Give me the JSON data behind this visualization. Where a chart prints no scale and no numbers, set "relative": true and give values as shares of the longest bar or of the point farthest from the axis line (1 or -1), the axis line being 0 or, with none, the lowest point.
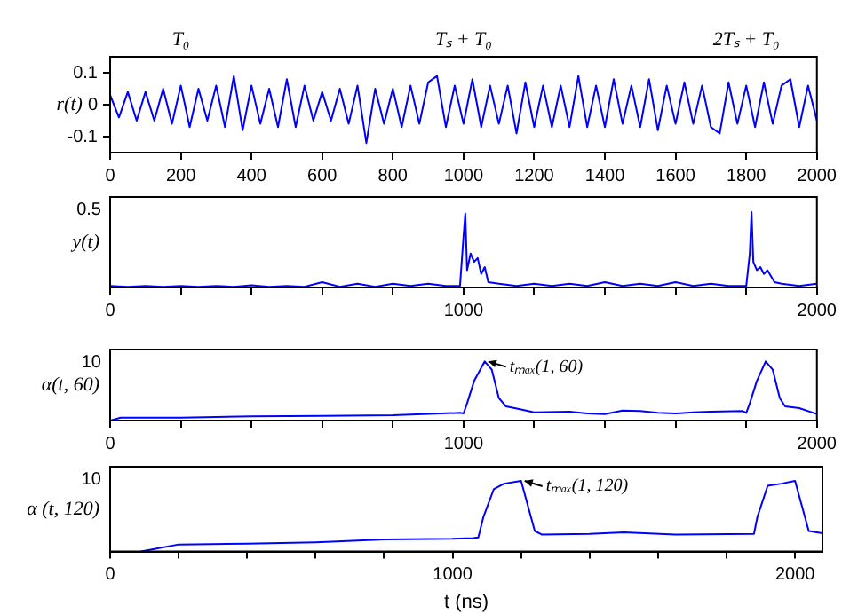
{
  "chart_data": [
    {
      "type": "line",
      "ylabel": "r(t)",
      "x": [
        0,
        25,
        50,
        75,
        100,
        125,
        150,
        175,
        200,
        225,
        250,
        275,
        300,
        325,
        350,
        375,
        400,
        425,
        450,
        475,
        500,
        525,
        550,
        575,
        600,
        625,
        650,
        675,
        700,
        725,
        750,
        775,
        800,
        825,
        850,
        875,
        900,
        925,
        950,
        975,
        1000,
        1025,
        1050,
        1075,
        1100,
        1125,
        1150,
        1175,
        1200,
        1225,
        1250,
        1275,
        1300,
        1325,
        1350,
        1375,
        1400,
        1425,
        1450,
        1475,
        1500,
        1525,
        1550,
        1575,
        1600,
        1625,
        1650,
        1675,
        1700,
        1725,
        1750,
        1775,
        1800,
        1825,
        1850,
        1875,
        1900,
        1925,
        1950,
        1975,
        2000
      ],
      "series": [
        {
          "color": "#0000ff",
          "values": [
            0.03,
            -0.04,
            0.04,
            -0.05,
            0.04,
            -0.05,
            0.05,
            -0.06,
            0.06,
            -0.07,
            0.05,
            -0.05,
            0.06,
            -0.07,
            0.09,
            -0.08,
            0.06,
            -0.06,
            0.05,
            -0.07,
            0.08,
            -0.07,
            0.06,
            -0.05,
            0.04,
            -0.05,
            0.05,
            -0.06,
            0.06,
            -0.12,
            0.05,
            -0.06,
            0.05,
            -0.07,
            0.06,
            -0.06,
            0.07,
            0.09,
            -0.07,
            0.06,
            -0.06,
            0.08,
            -0.07,
            0.06,
            -0.06,
            0.06,
            -0.09,
            0.07,
            -0.07,
            0.06,
            -0.07,
            0.06,
            -0.07,
            0.09,
            -0.07,
            0.06,
            -0.07,
            0.08,
            -0.06,
            0.06,
            -0.07,
            0.08,
            -0.08,
            0.06,
            -0.06,
            0.07,
            -0.06,
            0.06,
            -0.07,
            -0.09,
            0.07,
            -0.06,
            0.06,
            -0.07,
            0.07,
            -0.06,
            0.06,
            0.08,
            -0.07,
            0.06,
            -0.05
          ]
        }
      ],
      "xlim": [
        0,
        2000
      ],
      "xticks": [
        0,
        200,
        400,
        600,
        800,
        1000,
        1200,
        1400,
        1600,
        1800,
        2000
      ],
      "ylim": [
        -0.15,
        0.15
      ],
      "yticks": [
        -0.1,
        0,
        0.1
      ],
      "annotations": [
        "T₀",
        "Tₛ + T₀",
        "2Tₛ + T₀"
      ],
      "grid": false,
      "legend": false
    },
    {
      "type": "line",
      "ylabel": "y(t)",
      "relative": true,
      "x": [
        0,
        50,
        100,
        150,
        200,
        250,
        300,
        350,
        400,
        450,
        500,
        550,
        600,
        650,
        700,
        750,
        800,
        850,
        900,
        950,
        990,
        1000,
        1005,
        1010,
        1020,
        1030,
        1040,
        1050,
        1060,
        1070,
        1100,
        1150,
        1200,
        1250,
        1300,
        1350,
        1400,
        1450,
        1500,
        1550,
        1600,
        1650,
        1700,
        1750,
        1800,
        1810,
        1815,
        1820,
        1830,
        1840,
        1850,
        1860,
        1880,
        1900,
        1950,
        2000
      ],
      "series": [
        {
          "color": "#0000ff",
          "values": [
            0.02,
            0.01,
            0.02,
            0.01,
            0.02,
            0.01,
            0.02,
            0.01,
            0.03,
            0.01,
            0.02,
            0.01,
            0.07,
            0.01,
            0.05,
            0.01,
            0.05,
            0.02,
            0.05,
            0.02,
            0.02,
            0.68,
            0.98,
            0.23,
            0.45,
            0.34,
            0.39,
            0.18,
            0.27,
            0.07,
            0.05,
            0.02,
            0.05,
            0.02,
            0.05,
            0.02,
            0.07,
            0.02,
            0.05,
            0.02,
            0.07,
            0.02,
            0.05,
            0.02,
            0.02,
            0.45,
            1,
            0.34,
            0.23,
            0.27,
            0.18,
            0.23,
            0.07,
            0.05,
            0.02,
            0.05
          ]
        }
      ],
      "xlim": [
        0,
        2000
      ],
      "xticks": [
        0,
        {
          "value": 200,
          "label": null
        },
        {
          "value": 400,
          "label": null
        },
        {
          "value": 600,
          "label": null
        },
        {
          "value": 800,
          "label": null
        },
        1000,
        {
          "value": 1200,
          "label": null
        },
        {
          "value": 1400,
          "label": null
        },
        {
          "value": 1600,
          "label": null
        },
        {
          "value": 1800,
          "label": null
        },
        2000
      ],
      "annotations": [
        "0.5"
      ],
      "grid": false,
      "legend": false
    },
    {
      "type": "line",
      "ylabel": "α(t, 60)",
      "relative": true,
      "x": [
        0,
        30,
        200,
        400,
        600,
        800,
        990,
        1000,
        1010,
        1030,
        1060,
        1080,
        1100,
        1120,
        1160,
        1200,
        1300,
        1350,
        1400,
        1450,
        1500,
        1550,
        1600,
        1650,
        1700,
        1790,
        1800,
        1810,
        1830,
        1855,
        1875,
        1895,
        1910,
        1950,
        2000
      ],
      "series": [
        {
          "color": "#0000ff",
          "values": [
            0,
            0.05,
            0.05,
            0.07,
            0.08,
            0.09,
            0.13,
            0.12,
            0.29,
            0.67,
            1,
            0.86,
            0.38,
            0.24,
            0.19,
            0.14,
            0.15,
            0.12,
            0.11,
            0.17,
            0.16,
            0.13,
            0.12,
            0.14,
            0.15,
            0.16,
            0.13,
            0.29,
            0.67,
            1,
            0.86,
            0.38,
            0.24,
            0.21,
            0.11
          ]
        }
      ],
      "xlim": [
        0,
        2000
      ],
      "xticks": [
        0,
        {
          "value": 200,
          "label": null
        },
        {
          "value": 400,
          "label": null
        },
        {
          "value": 600,
          "label": null
        },
        {
          "value": 800,
          "label": null
        },
        1000,
        {
          "value": 1200,
          "label": null
        },
        {
          "value": 1400,
          "label": null
        },
        {
          "value": 1600,
          "label": null
        },
        {
          "value": 1800,
          "label": null
        },
        2000
      ],
      "annotations": [
        "10",
        {
          "text": "tₘₐₓ(1, 60)",
          "x": 1060,
          "y": 1
        }
      ],
      "grid": false,
      "legend": false
    },
    {
      "type": "line",
      "ylabel": "α (t, 120)",
      "xlabel": "t (ns)",
      "relative": true,
      "x": [
        90,
        200,
        400,
        600,
        800,
        1000,
        1060,
        1075,
        1090,
        1120,
        1150,
        1200,
        1240,
        1260,
        1400,
        1500,
        1650,
        1880,
        1890,
        1920,
        1960,
        2000,
        2040,
        2080
      ],
      "series": [
        {
          "color": "#0000ff",
          "values": [
            0,
            0.1,
            0.11,
            0.13,
            0.17,
            0.18,
            0.19,
            0.2,
            0.49,
            0.88,
            0.96,
            1,
            0.29,
            0.24,
            0.25,
            0.27,
            0.24,
            0.25,
            0.49,
            0.93,
            0.96,
            1,
            0.29,
            0.26
          ]
        }
      ],
      "xlim": [
        0,
        2080
      ],
      "xticks": [
        0,
        {
          "value": 200,
          "label": null
        },
        {
          "value": 400,
          "label": null
        },
        {
          "value": 600,
          "label": null
        },
        {
          "value": 800,
          "label": null
        },
        1000,
        {
          "value": 1200,
          "label": null
        },
        {
          "value": 1400,
          "label": null
        },
        {
          "value": 1600,
          "label": null
        },
        {
          "value": 1800,
          "label": null
        },
        2000
      ],
      "annotations": [
        "10",
        {
          "text": "tₘₐₓ(1, 120)",
          "x": 1200,
          "y": 1
        }
      ],
      "grid": false,
      "legend": false
    }
  ]
}
